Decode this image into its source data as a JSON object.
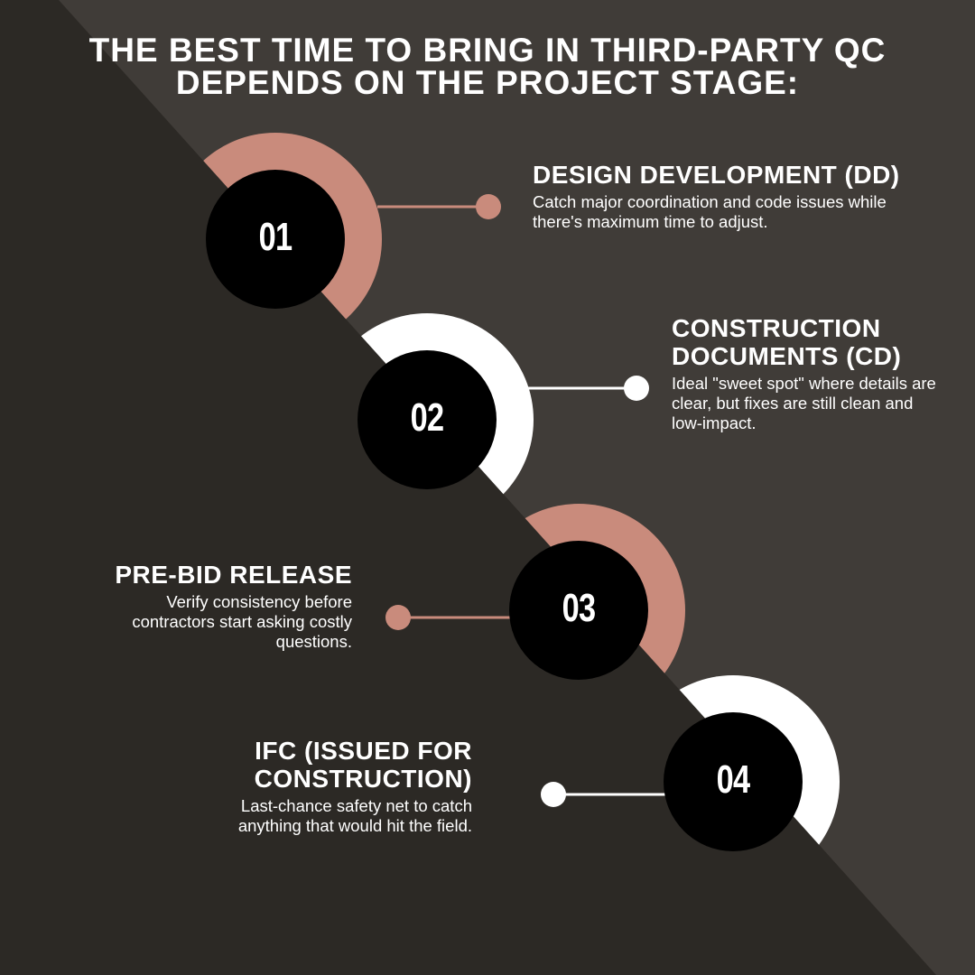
{
  "title": "THE BEST TIME TO BRING IN THIRD-PARTY QC DEPENDS ON THE PROJECT STAGE:",
  "colors": {
    "background_light": "#403c38",
    "background_dark": "#2c2925",
    "accent_pink": "#c98b7c",
    "white": "#ffffff",
    "circle": "#000000"
  },
  "steps": [
    {
      "number": "01",
      "heading": "DESIGN DEVELOPMENT (DD)",
      "text": "Catch major coordination and code issues while there's maximum time to adjust.",
      "accent": "#c98b7c"
    },
    {
      "number": "02",
      "heading": "CONSTRUCTION DOCUMENTS (CD)",
      "text": "Ideal \"sweet spot\" where details are clear, but fixes are still clean and low-impact.",
      "accent": "#ffffff"
    },
    {
      "number": "03",
      "heading": "PRE-BID RELEASE",
      "text": "Verify consistency before contractors start asking costly questions.",
      "accent": "#c98b7c"
    },
    {
      "number": "04",
      "heading": "IFC (ISSUED FOR CONSTRUCTION)",
      "text": "Last-chance safety net to catch anything that would hit the field.",
      "accent": "#ffffff"
    }
  ]
}
